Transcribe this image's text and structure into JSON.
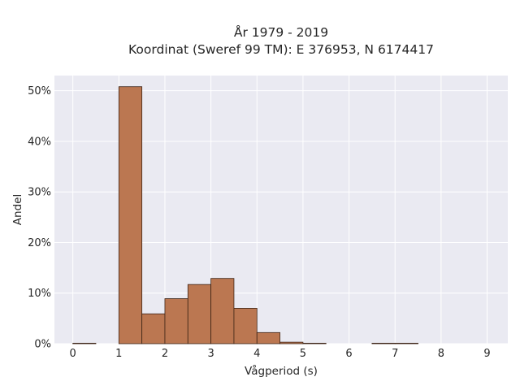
{
  "chart_data": {
    "type": "bar",
    "title": "År 1979 - 2019",
    "subtitle": "Koordinat (Sweref 99 TM): E 376953, N 6174417",
    "xlabel": "Vågperiod (s)",
    "ylabel": "Andel",
    "xlim": [
      -0.4,
      9.45
    ],
    "ylim": [
      0,
      0.53
    ],
    "xticks": [
      0,
      1,
      2,
      3,
      4,
      5,
      6,
      7,
      8,
      9
    ],
    "xtick_labels": [
      "0",
      "1",
      "2",
      "3",
      "4",
      "5",
      "6",
      "7",
      "8",
      "9"
    ],
    "yticks": [
      0,
      0.1,
      0.2,
      0.3,
      0.4,
      0.5
    ],
    "ytick_labels": [
      "0%",
      "10%",
      "20%",
      "30%",
      "40%",
      "50%"
    ],
    "bin_width": 0.5,
    "bins": [
      {
        "x0": 0.0,
        "value": 0.001
      },
      {
        "x0": 0.5,
        "value": 0.0
      },
      {
        "x0": 1.0,
        "value": 0.508
      },
      {
        "x0": 1.5,
        "value": 0.059
      },
      {
        "x0": 2.0,
        "value": 0.089
      },
      {
        "x0": 2.5,
        "value": 0.117
      },
      {
        "x0": 3.0,
        "value": 0.129
      },
      {
        "x0": 3.5,
        "value": 0.07
      },
      {
        "x0": 4.0,
        "value": 0.022
      },
      {
        "x0": 4.5,
        "value": 0.003
      },
      {
        "x0": 5.0,
        "value": 0.001
      },
      {
        "x0": 5.5,
        "value": 0.0
      },
      {
        "x0": 6.0,
        "value": 0.0
      },
      {
        "x0": 6.5,
        "value": 0.001
      },
      {
        "x0": 7.0,
        "value": 0.001
      }
    ],
    "grid": true,
    "colors": {
      "bar_fill": "#bb7751",
      "bar_edge": "#3d2416",
      "plot_background": "#eaeaf2",
      "grid": "#ffffff"
    }
  }
}
